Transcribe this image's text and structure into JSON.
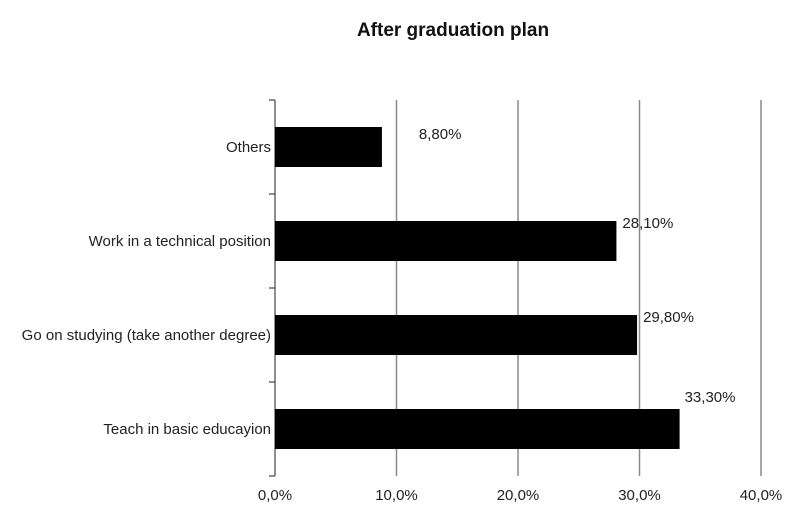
{
  "chart_data": {
    "type": "bar",
    "orientation": "horizontal",
    "title": "After graduation plan",
    "categories": [
      "Others",
      "Work in a technical position",
      "Go on studying (take another degree)",
      "Teach in basic educayion"
    ],
    "values": [
      8.8,
      28.1,
      29.8,
      33.3
    ],
    "value_labels": [
      "8,80%",
      "28,10%",
      "29,80%",
      "33,30%"
    ],
    "x_ticks": [
      "0,0%",
      "10,0%",
      "20,0%",
      "30,0%",
      "40,0%"
    ],
    "xlim": [
      0,
      40
    ],
    "xlabel": "",
    "ylabel": "",
    "grid": "vertical",
    "legend": "none",
    "bar_color": "#000000",
    "grid_color": "#8a8a8a"
  }
}
